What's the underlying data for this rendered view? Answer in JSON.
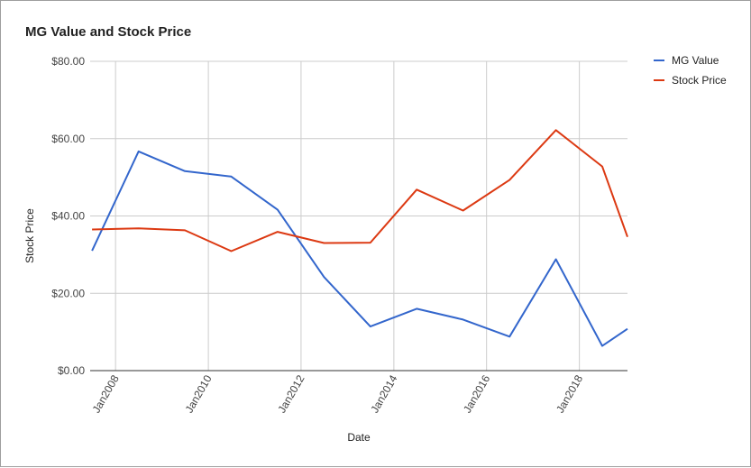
{
  "chart_data": {
    "type": "line",
    "title": "MG Value and Stock Price",
    "xlabel": "Date",
    "ylabel": "Stock Price",
    "ylim": [
      0,
      80
    ],
    "xlim": [
      "2007-06-15",
      "2019-01-15"
    ],
    "y_ticks": [
      "$0.00",
      "$20.00",
      "$40.00",
      "$60.00",
      "$80.00"
    ],
    "y_tick_values": [
      0,
      20,
      40,
      60,
      80
    ],
    "x_ticks": [
      "Jan2008",
      "Jan2010",
      "Jan2012",
      "Jan2014",
      "Jan2016",
      "Jan2018"
    ],
    "x_tick_dates": [
      "2008-01-01",
      "2010-01-01",
      "2012-01-01",
      "2014-01-01",
      "2016-01-01",
      "2018-01-01"
    ],
    "grid": true,
    "legend_position": "right",
    "x": [
      "2007-06-30",
      "2008-06-30",
      "2009-06-30",
      "2010-06-30",
      "2011-06-30",
      "2012-06-30",
      "2013-06-30",
      "2014-06-30",
      "2015-06-30",
      "2016-06-30",
      "2017-06-30",
      "2018-06-30",
      "2019-01-15"
    ],
    "series": [
      {
        "name": "MG Value",
        "color": "#3366cc",
        "values": [
          31.0,
          56.7,
          51.6,
          50.2,
          41.6,
          24.2,
          11.4,
          16.0,
          13.2,
          8.8,
          28.8,
          6.4,
          10.8
        ]
      },
      {
        "name": "Stock Price",
        "color": "#dc3912",
        "values": [
          36.5,
          36.8,
          36.3,
          30.9,
          35.9,
          33.0,
          33.1,
          46.8,
          41.4,
          49.3,
          62.2,
          52.8,
          34.6
        ]
      }
    ]
  }
}
